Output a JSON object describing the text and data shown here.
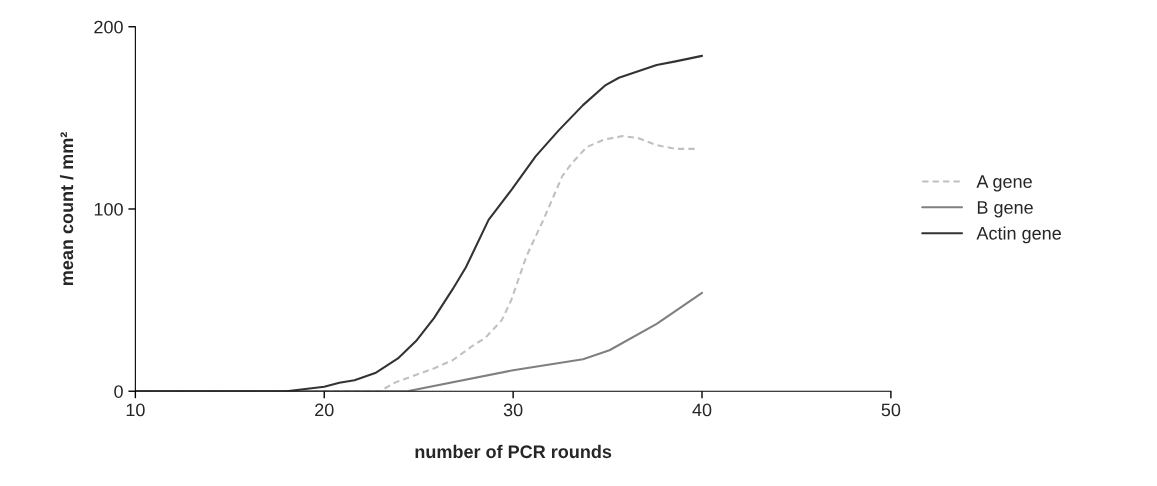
{
  "chart_data": {
    "type": "line",
    "xlabel": "number of PCR rounds",
    "ylabel": "mean count / mm²",
    "xlim": [
      10,
      50
    ],
    "xticks": [
      10,
      20,
      30,
      40,
      50
    ],
    "ylim": [
      0,
      200
    ],
    "yticks": [
      0,
      100,
      200
    ],
    "grid": false,
    "legend": "right",
    "marker": "none",
    "series": [
      {
        "name": "A gene",
        "color": "#c0c0c0",
        "line_style": "dashed",
        "x": [
          10,
          18,
          23,
          23.2,
          23.8,
          25.8,
          26.8,
          28,
          28.5,
          29.4,
          29.9,
          30.7,
          31.6,
          32.6,
          33.1,
          33.9,
          34.8,
          35.8,
          36.6,
          37.6,
          38.6,
          39.7
        ],
        "values": [
          0,
          0,
          0,
          1.5,
          5,
          12.5,
          17,
          26,
          29,
          39,
          50,
          74,
          94,
          118,
          125,
          134,
          138,
          140,
          139,
          135,
          133,
          133
        ]
      },
      {
        "name": "B gene",
        "color": "#808080",
        "line_style": "solid",
        "x": [
          10,
          18,
          24.4,
          30,
          33.7,
          35.1,
          37.6,
          40
        ],
        "values": [
          0,
          0,
          0,
          11.5,
          17.6,
          22.5,
          37,
          54
        ]
      },
      {
        "name": "Actin gene",
        "color": "#333333",
        "line_style": "solid",
        "x": [
          10,
          18,
          20,
          20.8,
          21.6,
          22.7,
          23.9,
          24.9,
          25.8,
          26.8,
          27.5,
          28.7,
          29.95,
          31.2,
          32.4,
          33.7,
          34.9,
          35.6,
          37.6,
          38.6,
          40
        ],
        "values": [
          0,
          0,
          2.5,
          4.6,
          6,
          10,
          18,
          28,
          40,
          56,
          68,
          94,
          111,
          129,
          143,
          157,
          168,
          172,
          179,
          181,
          184
        ]
      }
    ]
  }
}
